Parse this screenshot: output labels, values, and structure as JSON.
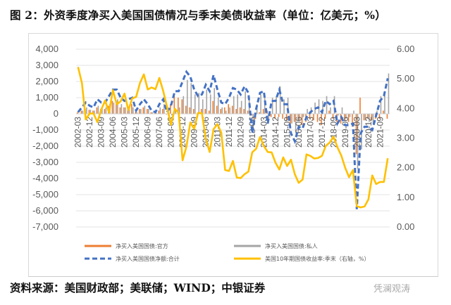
{
  "title": "图 2：外资季度净买入美国国债情况与季末美债收益率（单位：亿美元；%）",
  "source": "资料来源：美国财政部；美联储；WIND；中银证券",
  "watermark": "凭澜观涛",
  "chart_data": {
    "type": "bar+line",
    "title": "图 2：外资季度净买入美国国债情况与季末美债收益率（单位：亿美元；%）",
    "xlabel": "",
    "ylabel": "亿美元",
    "y2label": "%",
    "ylim": [
      -7000,
      4000
    ],
    "y2lim": [
      0,
      6
    ],
    "yticks": [
      "4,000",
      "3,000",
      "2,000",
      "1,000",
      "0",
      "-1,000",
      "-2,000",
      "-3,000",
      "-4,000",
      "-5,000",
      "-6,000",
      "-7,000"
    ],
    "y2ticks": [
      "6.00",
      "5.00",
      "4.00",
      "3.00",
      "2.00",
      "1.00",
      "0.00"
    ],
    "xticklabels": [
      "2002-03",
      "2002-12",
      "2003-09",
      "2004-06",
      "2005-03",
      "2005-12",
      "2006-09",
      "2007-06",
      "2008-03",
      "2008-12",
      "2009-09",
      "2010-06",
      "2011-03",
      "2011-12",
      "2012-09",
      "2013-06",
      "2014-03",
      "2014-12",
      "2015-09",
      "2016-06",
      "2017-03",
      "2017-12",
      "2018-09",
      "2019-06",
      "2020-03",
      "2020-12",
      "2021-09"
    ],
    "start_quarter": "2002-03",
    "end_quarter": "2022-03",
    "legend": "bottom",
    "grid": true,
    "series": [
      {
        "name": "净买入美国国债:官方",
        "type": "bar",
        "axis": "left",
        "color": "#ED7D31",
        "values": [
          100,
          200,
          300,
          250,
          200,
          400,
          300,
          300,
          500,
          800,
          600,
          400,
          400,
          500,
          600,
          100,
          300,
          400,
          300,
          100,
          50,
          200,
          300,
          -50,
          600,
          1100,
          1000,
          900,
          500,
          400,
          300,
          -200,
          300,
          300,
          200,
          800,
          500,
          300,
          400,
          600,
          500,
          300,
          400,
          300,
          200,
          -100,
          -300,
          100,
          300,
          200,
          -200,
          -300,
          -200,
          -300,
          -400,
          -600,
          -500,
          -400,
          -700,
          -500,
          -300,
          -400,
          -500,
          -700,
          -300,
          200,
          -300,
          -500,
          -600,
          -400,
          -500,
          -800,
          -2500,
          1000,
          -400,
          -300,
          -400,
          -300,
          -300,
          200,
          -300
        ]
      },
      {
        "name": "净买入美国国债:私人",
        "type": "bar",
        "axis": "left",
        "color": "#A5A5A5",
        "values": [
          0,
          200,
          400,
          250,
          200,
          500,
          400,
          400,
          600,
          700,
          900,
          600,
          400,
          400,
          400,
          100,
          300,
          500,
          300,
          100,
          50,
          400,
          600,
          150,
          -100,
          300,
          400,
          1100,
          2100,
          1900,
          1200,
          1300,
          900,
          1500,
          1200,
          1600,
          1000,
          400,
          200,
          400,
          1100,
          1200,
          800,
          1400,
          1100,
          -1100,
          600,
          1200,
          1200,
          -400,
          1000,
          1100,
          1700,
          900,
          1000,
          -600,
          -1200,
          -400,
          -200,
          300,
          400,
          700,
          900,
          800,
          1100,
          400,
          1100,
          -100,
          400,
          -300,
          -200,
          200,
          -3400,
          -2200,
          -400,
          -500,
          -600,
          200,
          1100,
          1400,
          2500
        ]
      },
      {
        "name": "净买入美国国债净额:合计",
        "type": "line-dashed",
        "axis": "left",
        "color": "#4472C4",
        "values": [
          100,
          400,
          700,
          500,
          400,
          900,
          700,
          700,
          1100,
          1500,
          1500,
          1000,
          800,
          900,
          1000,
          200,
          600,
          900,
          600,
          200,
          100,
          600,
          900,
          100,
          500,
          1400,
          1400,
          2000,
          2600,
          2300,
          1500,
          1100,
          1200,
          1800,
          1400,
          2400,
          1500,
          700,
          600,
          1000,
          1600,
          1500,
          1200,
          1700,
          1300,
          -1200,
          300,
          1300,
          1400,
          -600,
          800,
          800,
          1500,
          600,
          600,
          -1200,
          -1700,
          -800,
          -900,
          -200,
          100,
          300,
          400,
          100,
          800,
          600,
          800,
          -600,
          -200,
          -700,
          -700,
          -600,
          -5900,
          -1200,
          -800,
          -800,
          -1000,
          -100,
          800,
          1100,
          2200
        ]
      },
      {
        "name": "美国10年期国债收益率:季末（右轴，%）",
        "type": "line",
        "axis": "right",
        "color": "#FFC000",
        "values": [
          5.4,
          4.86,
          3.63,
          3.83,
          3.83,
          3.54,
          3.96,
          4.27,
          3.86,
          4.62,
          4.14,
          4.24,
          4.5,
          3.94,
          4.34,
          4.39,
          4.86,
          5.15,
          4.64,
          4.71,
          4.65,
          5.03,
          4.59,
          4.04,
          3.45,
          3.99,
          3.85,
          2.25,
          2.71,
          3.53,
          3.31,
          3.85,
          3.84,
          2.97,
          2.53,
          3.3,
          3.47,
          3.18,
          1.92,
          1.89,
          2.23,
          1.67,
          1.65,
          1.78,
          1.87,
          2.52,
          2.64,
          3.04,
          2.73,
          2.53,
          2.52,
          2.17,
          1.94,
          2.35,
          2.06,
          2.27,
          1.78,
          1.49,
          1.6,
          2.45,
          2.4,
          2.31,
          2.33,
          2.4,
          2.74,
          2.85,
          3.05,
          2.69,
          2.41,
          2.0,
          1.68,
          1.92,
          0.7,
          0.66,
          0.69,
          0.93,
          1.74,
          1.45,
          1.52,
          1.52,
          2.32
        ]
      }
    ]
  }
}
